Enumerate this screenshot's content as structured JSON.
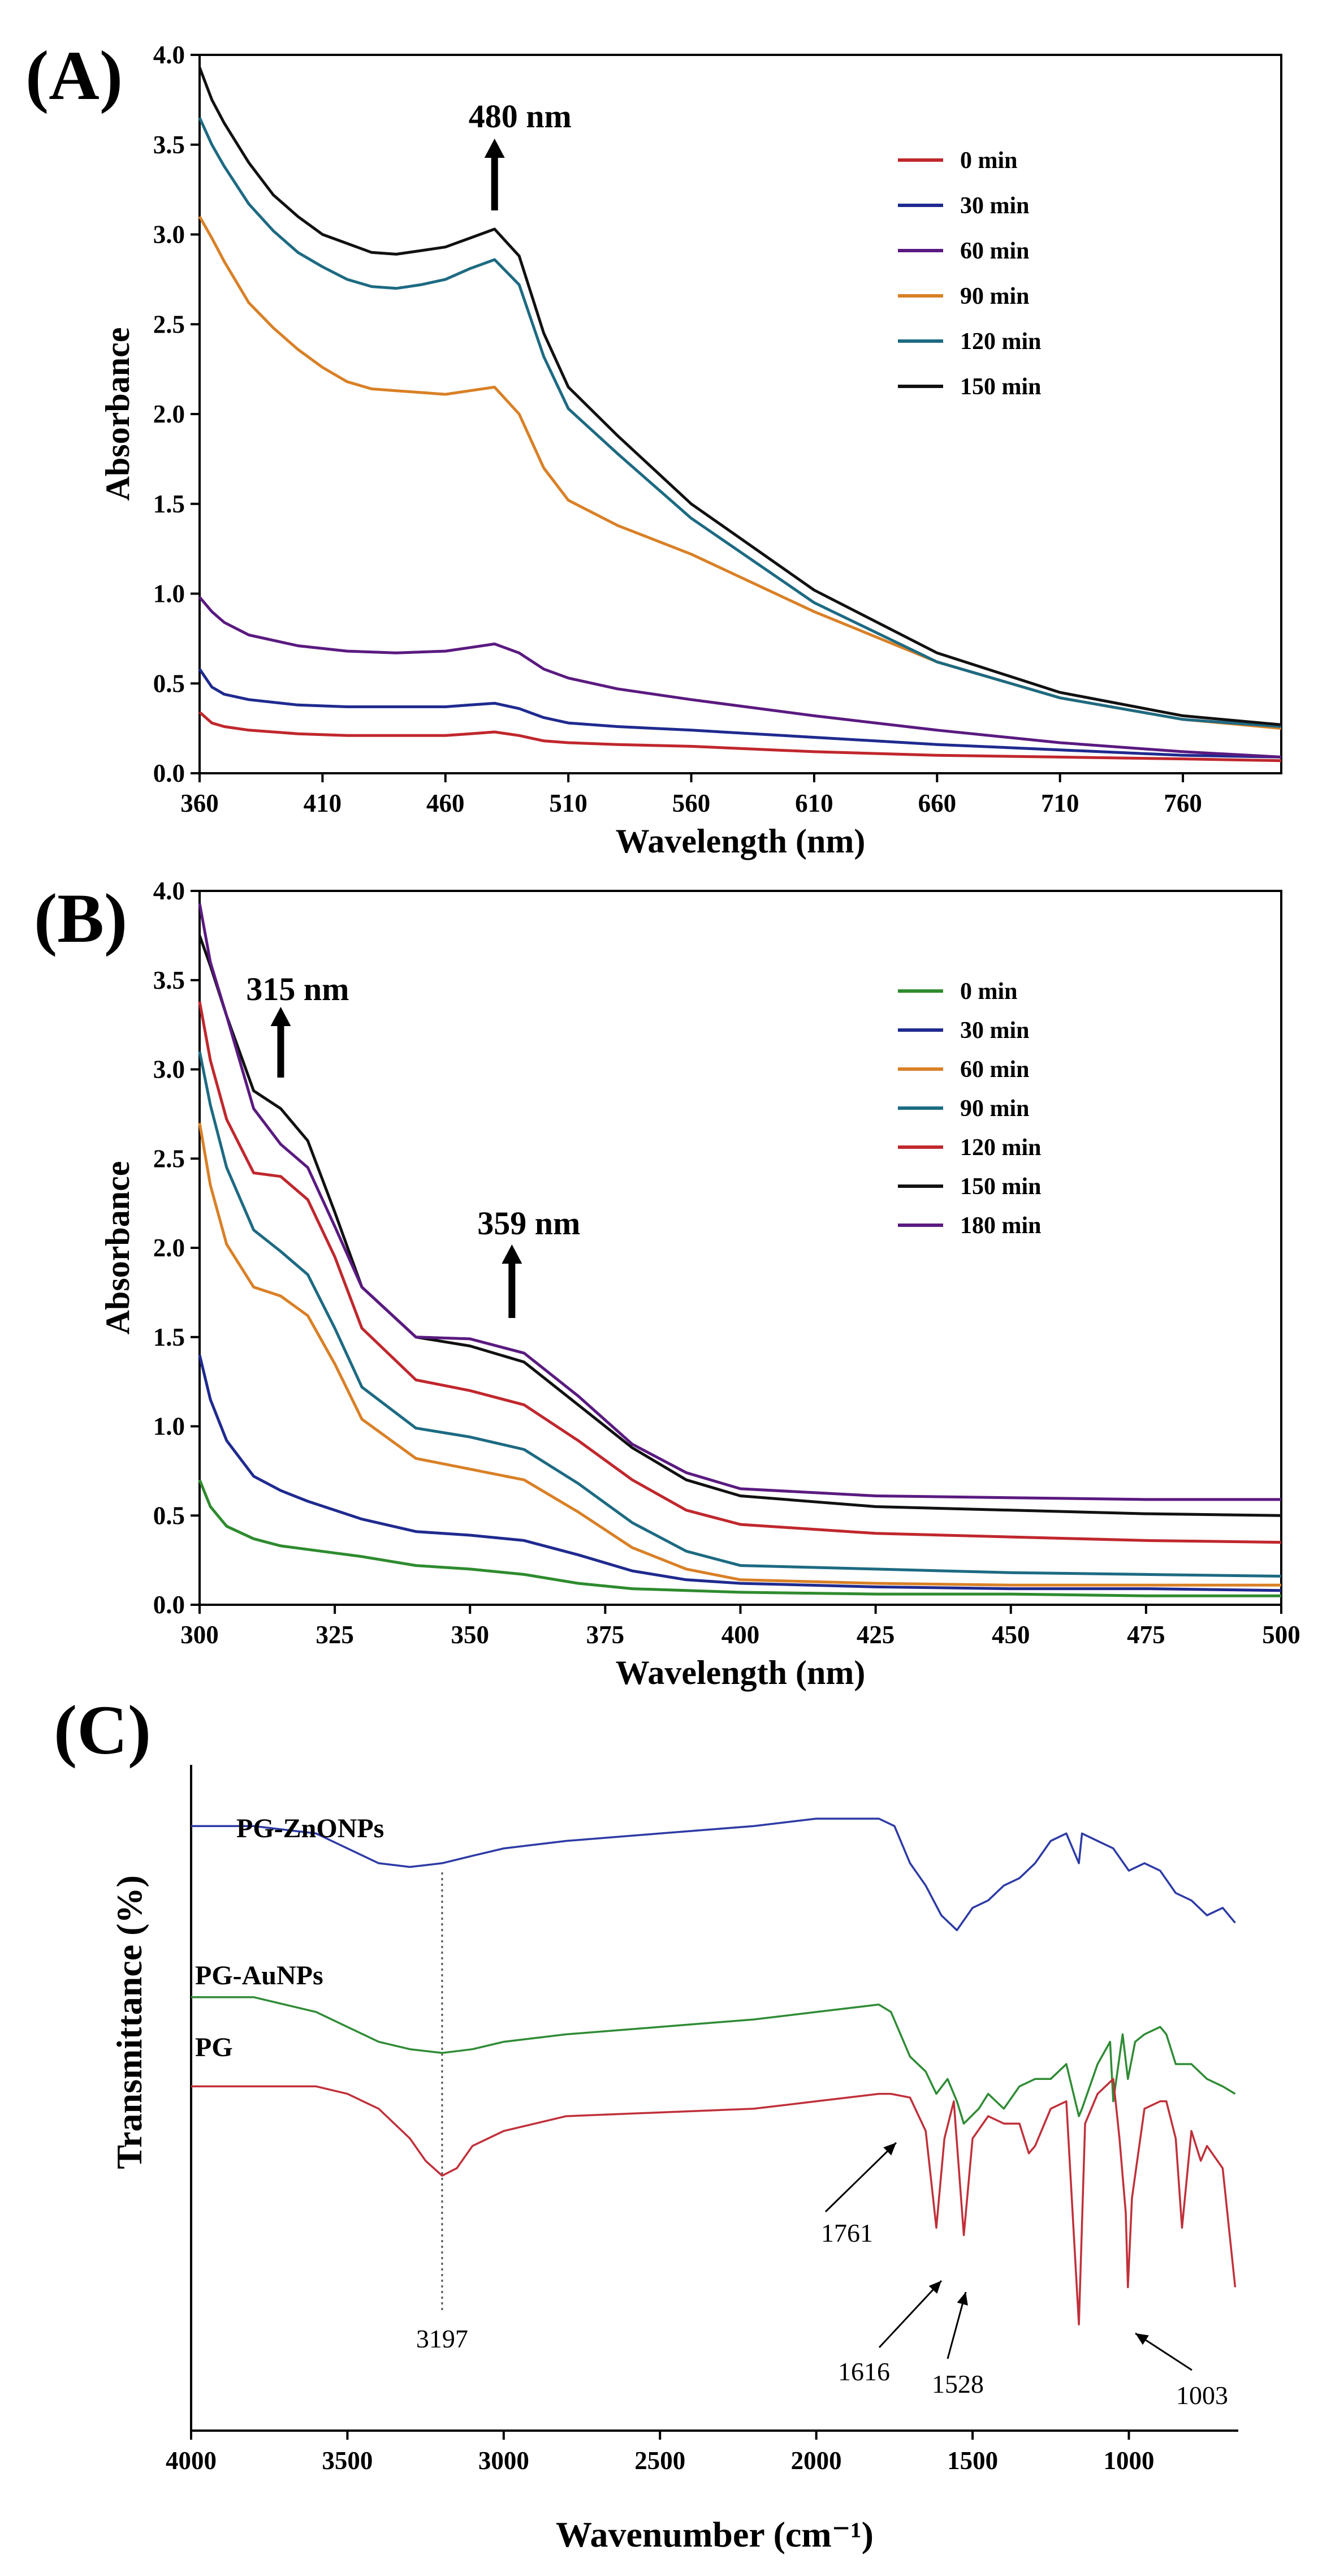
{
  "chart_data": [
    {
      "panel": "(A)",
      "type": "line",
      "xlabel": "Wavelength (nm)",
      "ylabel": "Absorbance",
      "xlim": [
        360,
        800
      ],
      "ylim": [
        0,
        4
      ],
      "xticks": [
        360,
        410,
        460,
        510,
        560,
        610,
        660,
        710,
        760
      ],
      "yticks": [
        0,
        0.5,
        1,
        1.5,
        2,
        2.5,
        3,
        3.5,
        4
      ],
      "ytick_labels": [
        "0.0",
        "0.5",
        "1.0",
        "1.5",
        "2.0",
        "2.5",
        "3.0",
        "3.5",
        "4.0"
      ],
      "legend_position": "top-right",
      "annotations": [
        {
          "text": "480 nm",
          "x": 480
        }
      ],
      "series": [
        {
          "name": "0 min",
          "color": "#c0272d",
          "x": [
            360,
            365,
            370,
            380,
            400,
            420,
            440,
            460,
            470,
            480,
            490,
            500,
            510,
            530,
            560,
            610,
            660,
            710,
            760,
            800
          ],
          "y": [
            0.34,
            0.28,
            0.26,
            0.24,
            0.22,
            0.21,
            0.21,
            0.21,
            0.22,
            0.23,
            0.21,
            0.18,
            0.17,
            0.16,
            0.15,
            0.12,
            0.1,
            0.09,
            0.08,
            0.07
          ]
        },
        {
          "name": "30 min",
          "color": "#1f2a8f",
          "x": [
            360,
            365,
            370,
            380,
            400,
            420,
            440,
            460,
            470,
            480,
            490,
            500,
            510,
            530,
            560,
            610,
            660,
            710,
            760,
            800
          ],
          "y": [
            0.58,
            0.48,
            0.44,
            0.41,
            0.38,
            0.37,
            0.37,
            0.37,
            0.38,
            0.39,
            0.36,
            0.31,
            0.28,
            0.26,
            0.24,
            0.2,
            0.16,
            0.13,
            0.1,
            0.09
          ]
        },
        {
          "name": "60 min",
          "color": "#5a1a80",
          "x": [
            360,
            365,
            370,
            380,
            400,
            420,
            440,
            460,
            470,
            480,
            490,
            500,
            510,
            530,
            560,
            610,
            660,
            710,
            760,
            800
          ],
          "y": [
            0.98,
            0.9,
            0.84,
            0.77,
            0.71,
            0.68,
            0.67,
            0.68,
            0.7,
            0.72,
            0.67,
            0.58,
            0.53,
            0.47,
            0.41,
            0.32,
            0.24,
            0.17,
            0.12,
            0.09
          ]
        },
        {
          "name": "90 min",
          "color": "#d98026",
          "x": [
            360,
            365,
            370,
            380,
            390,
            400,
            410,
            420,
            430,
            440,
            450,
            460,
            470,
            480,
            490,
            500,
            510,
            530,
            560,
            610,
            660,
            710,
            760,
            800
          ],
          "y": [
            3.1,
            2.98,
            2.85,
            2.62,
            2.48,
            2.36,
            2.26,
            2.18,
            2.14,
            2.13,
            2.12,
            2.11,
            2.13,
            2.15,
            2.0,
            1.7,
            1.52,
            1.38,
            1.22,
            0.9,
            0.62,
            0.42,
            0.3,
            0.25
          ]
        },
        {
          "name": "120 min",
          "color": "#1d6a82",
          "x": [
            360,
            365,
            370,
            380,
            390,
            400,
            410,
            420,
            430,
            440,
            450,
            460,
            470,
            480,
            490,
            500,
            510,
            530,
            560,
            610,
            660,
            710,
            760,
            800
          ],
          "y": [
            3.65,
            3.5,
            3.38,
            3.17,
            3.02,
            2.9,
            2.82,
            2.75,
            2.71,
            2.7,
            2.72,
            2.75,
            2.81,
            2.86,
            2.72,
            2.32,
            2.03,
            1.78,
            1.42,
            0.95,
            0.62,
            0.42,
            0.3,
            0.26
          ]
        },
        {
          "name": "150 min",
          "color": "#111111",
          "x": [
            360,
            365,
            370,
            380,
            390,
            400,
            410,
            420,
            430,
            440,
            450,
            460,
            470,
            480,
            490,
            500,
            510,
            530,
            560,
            610,
            660,
            710,
            760,
            800
          ],
          "y": [
            3.93,
            3.75,
            3.62,
            3.4,
            3.22,
            3.1,
            3.0,
            2.95,
            2.9,
            2.89,
            2.91,
            2.93,
            2.98,
            3.03,
            2.88,
            2.45,
            2.15,
            1.88,
            1.5,
            1.02,
            0.67,
            0.45,
            0.32,
            0.27
          ]
        }
      ]
    },
    {
      "panel": "(B)",
      "type": "line",
      "xlabel": "Wavelength (nm)",
      "ylabel": "Absorbance",
      "xlim": [
        300,
        500
      ],
      "ylim": [
        0,
        4
      ],
      "xticks": [
        300,
        325,
        350,
        375,
        400,
        425,
        450,
        475,
        500
      ],
      "yticks": [
        0,
        0.5,
        1,
        1.5,
        2,
        2.5,
        3,
        3.5,
        4
      ],
      "ytick_labels": [
        "0.0",
        "0.5",
        "1.0",
        "1.5",
        "2.0",
        "2.5",
        "3.0",
        "3.5",
        "4.0"
      ],
      "legend_position": "top-right",
      "annotations": [
        {
          "text": "315 nm",
          "x": 315
        },
        {
          "text": "359 nm",
          "x": 359
        }
      ],
      "series": [
        {
          "name": "0 min",
          "color": "#2e8b2e",
          "x": [
            300,
            302,
            305,
            310,
            315,
            320,
            330,
            340,
            350,
            360,
            370,
            380,
            390,
            400,
            425,
            450,
            475,
            500
          ],
          "y": [
            0.7,
            0.55,
            0.44,
            0.37,
            0.33,
            0.31,
            0.27,
            0.22,
            0.2,
            0.17,
            0.12,
            0.09,
            0.08,
            0.07,
            0.06,
            0.06,
            0.05,
            0.05
          ]
        },
        {
          "name": "30 min",
          "color": "#1f2a8f",
          "x": [
            300,
            302,
            305,
            310,
            315,
            320,
            330,
            340,
            350,
            360,
            370,
            380,
            390,
            400,
            425,
            450,
            475,
            500
          ],
          "y": [
            1.4,
            1.15,
            0.92,
            0.72,
            0.64,
            0.58,
            0.48,
            0.41,
            0.39,
            0.36,
            0.28,
            0.19,
            0.14,
            0.12,
            0.1,
            0.09,
            0.09,
            0.08
          ]
        },
        {
          "name": "60 min",
          "color": "#d98026",
          "x": [
            300,
            302,
            305,
            310,
            315,
            320,
            325,
            330,
            340,
            350,
            360,
            370,
            380,
            390,
            400,
            425,
            450,
            475,
            500
          ],
          "y": [
            2.7,
            2.35,
            2.02,
            1.78,
            1.73,
            1.62,
            1.35,
            1.04,
            0.82,
            0.76,
            0.7,
            0.52,
            0.32,
            0.2,
            0.14,
            0.12,
            0.11,
            0.11,
            0.11
          ]
        },
        {
          "name": "90 min",
          "color": "#1d6a82",
          "x": [
            300,
            302,
            305,
            310,
            315,
            320,
            325,
            330,
            340,
            350,
            360,
            370,
            380,
            390,
            400,
            425,
            450,
            475,
            500
          ],
          "y": [
            3.1,
            2.8,
            2.45,
            2.1,
            1.98,
            1.85,
            1.55,
            1.22,
            0.99,
            0.94,
            0.87,
            0.68,
            0.46,
            0.3,
            0.22,
            0.2,
            0.18,
            0.17,
            0.16
          ]
        },
        {
          "name": "120 min",
          "color": "#c0272d",
          "x": [
            300,
            302,
            305,
            310,
            315,
            320,
            325,
            330,
            340,
            350,
            360,
            370,
            380,
            390,
            400,
            425,
            450,
            475,
            500
          ],
          "y": [
            3.38,
            3.05,
            2.72,
            2.42,
            2.4,
            2.27,
            1.95,
            1.55,
            1.26,
            1.2,
            1.12,
            0.92,
            0.7,
            0.53,
            0.45,
            0.4,
            0.38,
            0.36,
            0.35
          ]
        },
        {
          "name": "150 min",
          "color": "#111111",
          "x": [
            300,
            302,
            305,
            310,
            315,
            320,
            325,
            330,
            340,
            350,
            360,
            370,
            380,
            390,
            400,
            425,
            450,
            475,
            500
          ],
          "y": [
            3.75,
            3.58,
            3.3,
            2.88,
            2.78,
            2.6,
            2.2,
            1.78,
            1.5,
            1.45,
            1.36,
            1.12,
            0.88,
            0.7,
            0.61,
            0.55,
            0.53,
            0.51,
            0.5
          ]
        },
        {
          "name": "180 min",
          "color": "#5a1a80",
          "x": [
            300,
            302,
            305,
            310,
            315,
            320,
            325,
            330,
            340,
            350,
            360,
            370,
            380,
            390,
            400,
            425,
            450,
            475,
            500
          ],
          "y": [
            3.93,
            3.6,
            3.3,
            2.78,
            2.58,
            2.45,
            2.12,
            1.78,
            1.5,
            1.49,
            1.41,
            1.17,
            0.9,
            0.74,
            0.65,
            0.61,
            0.6,
            0.59,
            0.59
          ]
        }
      ]
    },
    {
      "panel": "(C)",
      "type": "line",
      "xlabel": "Wavenumber (cm⁻¹)",
      "ylabel": "Transmittance (%)",
      "xlim": [
        4000,
        650
      ],
      "ylim": [
        0,
        100
      ],
      "xticks": [
        4000,
        3500,
        3000,
        2500,
        2000,
        1500,
        1000
      ],
      "reference_line_x": 3197,
      "series": [
        {
          "name": "PG-ZnONPs",
          "color": "#2d3aa5",
          "x": [
            4000,
            3800,
            3600,
            3500,
            3400,
            3300,
            3197,
            3100,
            3000,
            2800,
            2500,
            2200,
            2000,
            1800,
            1750,
            1700,
            1650,
            1600,
            1550,
            1500,
            1450,
            1400,
            1350,
            1300,
            1250,
            1200,
            1160,
            1150,
            1100,
            1050,
            1000,
            950,
            900,
            850,
            800,
            750,
            700,
            660
          ],
          "y": [
            92,
            92,
            91,
            89,
            87,
            86.5,
            87,
            88,
            89,
            90,
            91,
            92,
            93,
            93,
            92,
            87,
            84,
            80,
            78,
            81,
            82,
            84,
            85,
            87,
            90,
            91,
            87,
            91,
            90,
            89,
            86,
            87,
            86,
            83,
            82,
            80,
            81,
            79
          ]
        },
        {
          "name": "PG-AuNPs",
          "color": "#2f8b35",
          "x": [
            4000,
            3800,
            3600,
            3500,
            3400,
            3300,
            3197,
            3100,
            3000,
            2800,
            2500,
            2200,
            2000,
            1800,
            1761,
            1700,
            1650,
            1616,
            1580,
            1550,
            1528,
            1480,
            1450,
            1400,
            1350,
            1300,
            1250,
            1200,
            1160,
            1150,
            1100,
            1060,
            1050,
            1020,
            1003,
            980,
            950,
            900,
            880,
            850,
            800,
            750,
            700,
            660
          ],
          "y": [
            69,
            69,
            67,
            65,
            63,
            62,
            61.5,
            62,
            63,
            64,
            65,
            66,
            67,
            68,
            67,
            61,
            59,
            56,
            58,
            55,
            52,
            54,
            56,
            54,
            57,
            58,
            58,
            60,
            53,
            54,
            60,
            63,
            55,
            64,
            58,
            63,
            64,
            65,
            64,
            60,
            60,
            58,
            57,
            56
          ]
        },
        {
          "name": "PG",
          "color": "#c0303a",
          "x": [
            4000,
            3800,
            3600,
            3500,
            3400,
            3300,
            3250,
            3197,
            3150,
            3100,
            3050,
            3000,
            2900,
            2800,
            2500,
            2200,
            2000,
            1800,
            1761,
            1700,
            1650,
            1616,
            1590,
            1560,
            1528,
            1500,
            1450,
            1400,
            1350,
            1320,
            1300,
            1250,
            1200,
            1160,
            1140,
            1100,
            1050,
            1030,
            1010,
            1003,
            990,
            950,
            900,
            880,
            850,
            830,
            800,
            770,
            750,
            700,
            660
          ],
          "y": [
            57,
            57,
            57,
            56,
            54,
            50,
            47,
            45,
            46,
            49,
            50,
            51,
            52,
            53,
            53.5,
            54,
            55,
            56,
            56,
            55.5,
            51,
            38,
            50,
            55,
            37,
            50,
            53,
            52,
            52,
            48,
            49,
            54,
            55,
            25,
            52,
            56,
            58,
            50,
            40,
            30,
            42,
            54,
            55,
            55,
            50,
            38,
            51,
            47,
            49,
            46,
            30
          ]
        }
      ],
      "peak_labels": [
        {
          "text": "3197",
          "x": 3197
        },
        {
          "text": "1761",
          "x": 1761
        },
        {
          "text": "1616",
          "x": 1616
        },
        {
          "text": "1528",
          "x": 1528
        },
        {
          "text": "1003",
          "x": 1003
        }
      ]
    }
  ]
}
